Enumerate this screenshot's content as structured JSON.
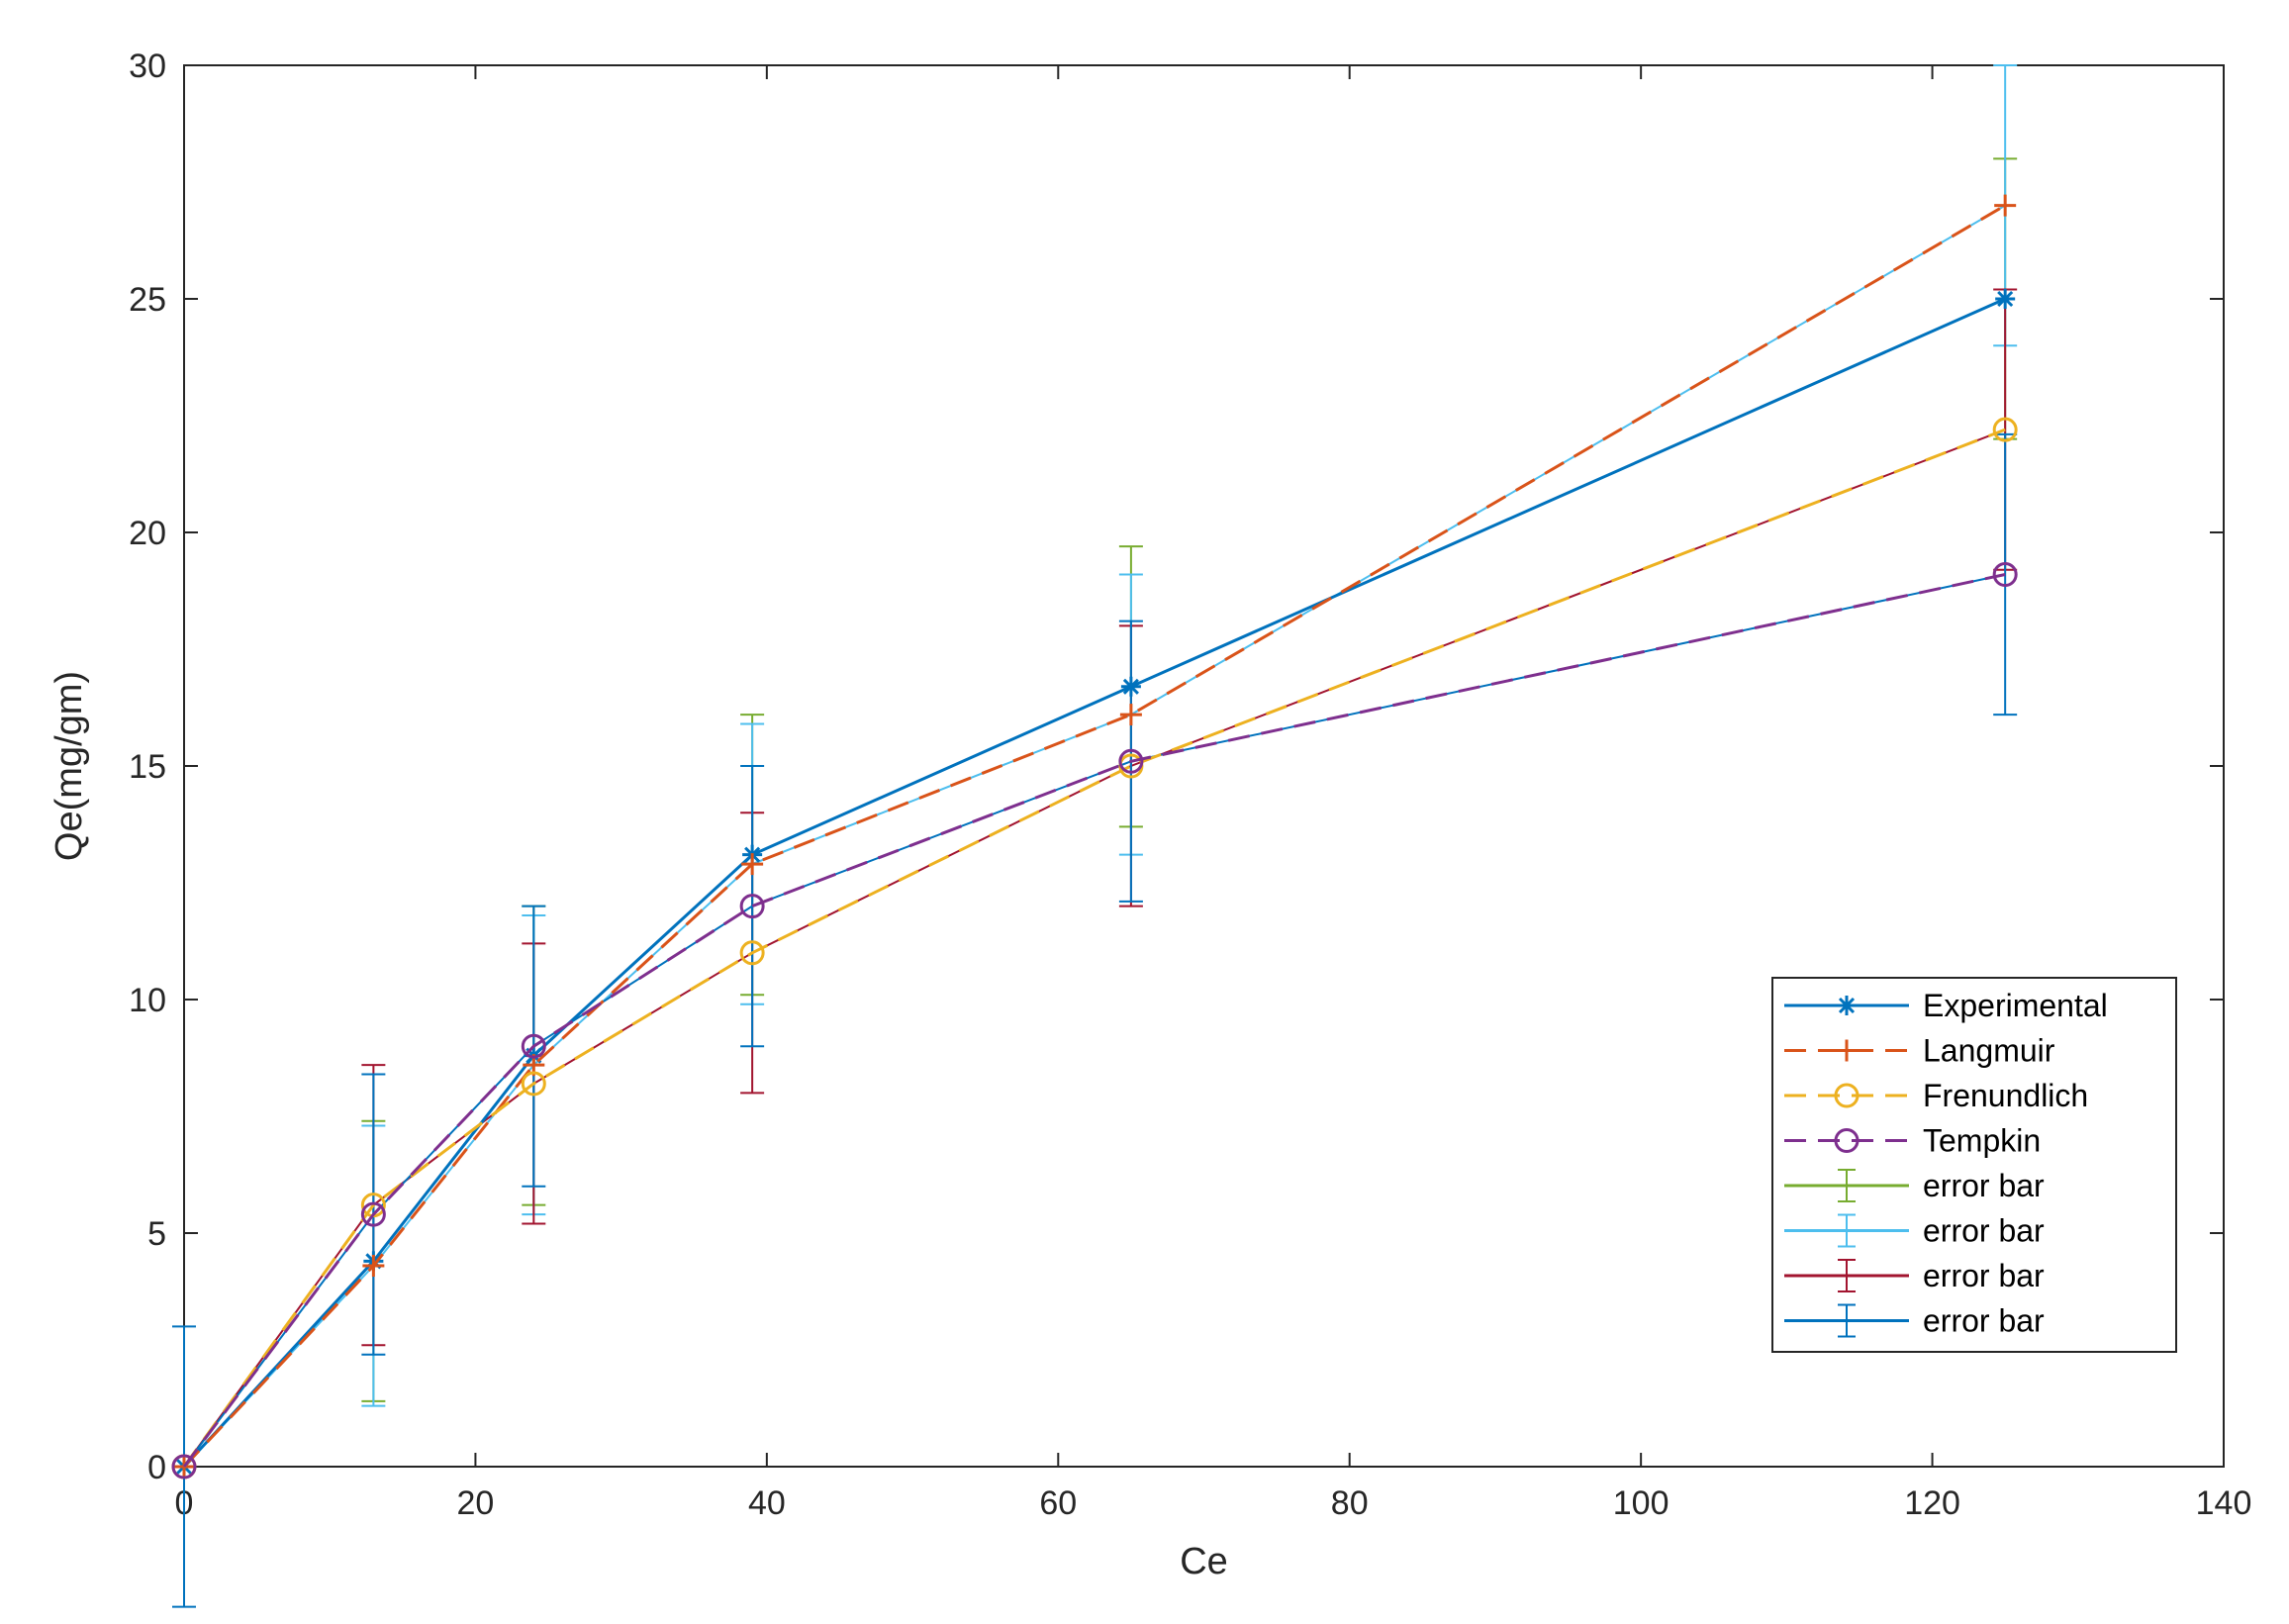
{
  "chart_data": {
    "type": "line",
    "xlabel": "Ce",
    "ylabel": "Qe(mg/gm)",
    "xlim": [
      0,
      140
    ],
    "ylim": [
      0,
      30
    ],
    "xticks": [
      0,
      20,
      40,
      60,
      80,
      100,
      120,
      140
    ],
    "yticks": [
      0,
      5,
      10,
      15,
      20,
      25,
      30
    ],
    "x": [
      0,
      13,
      24,
      39,
      65,
      125
    ],
    "legend_position": "lower-right",
    "series": [
      {
        "name": "Experimental",
        "values": [
          0,
          4.4,
          8.8,
          13.1,
          16.7,
          25.0
        ],
        "color": "#0072BD",
        "marker": "asterisk",
        "linestyle": "solid"
      },
      {
        "name": "Langmuir",
        "values": [
          0,
          4.3,
          8.6,
          12.9,
          16.1,
          27.0
        ],
        "color": "#D95319",
        "marker": "plus",
        "linestyle": "dashed"
      },
      {
        "name": "Frenundlich",
        "values": [
          0,
          5.6,
          8.2,
          11.0,
          15.0,
          22.2
        ],
        "color": "#EDB120",
        "marker": "circle",
        "linestyle": "dashed"
      },
      {
        "name": "Tempkin",
        "values": [
          0,
          5.4,
          9.0,
          12.0,
          15.1,
          19.1
        ],
        "color": "#7E2F8E",
        "marker": "circle",
        "linestyle": "dashed"
      },
      {
        "name": "error bar",
        "values": [
          0,
          4.4,
          8.8,
          13.1,
          16.7,
          25.0
        ],
        "error": [
          0,
          3.0,
          3.2,
          3.0,
          3.0,
          3.0
        ],
        "color": "#77AC30",
        "marker": "none",
        "linestyle": "solid"
      },
      {
        "name": "error bar",
        "values": [
          0,
          4.3,
          8.6,
          12.9,
          16.1,
          27.0
        ],
        "error": [
          0,
          3.0,
          3.2,
          3.0,
          3.0,
          3.0
        ],
        "color": "#4DBEEE",
        "marker": "none",
        "linestyle": "solid"
      },
      {
        "name": "error bar",
        "values": [
          0,
          5.6,
          8.2,
          11.0,
          15.0,
          22.2
        ],
        "error": [
          0,
          3.0,
          3.0,
          3.0,
          3.0,
          3.0
        ],
        "color": "#A2142F",
        "marker": "none",
        "linestyle": "solid"
      },
      {
        "name": "error bar",
        "values": [
          0,
          5.4,
          9.0,
          12.0,
          15.1,
          19.1
        ],
        "error": [
          3.0,
          3.0,
          3.0,
          3.0,
          3.0,
          3.0
        ],
        "color": "#0072BD",
        "marker": "none",
        "linestyle": "solid"
      }
    ]
  }
}
